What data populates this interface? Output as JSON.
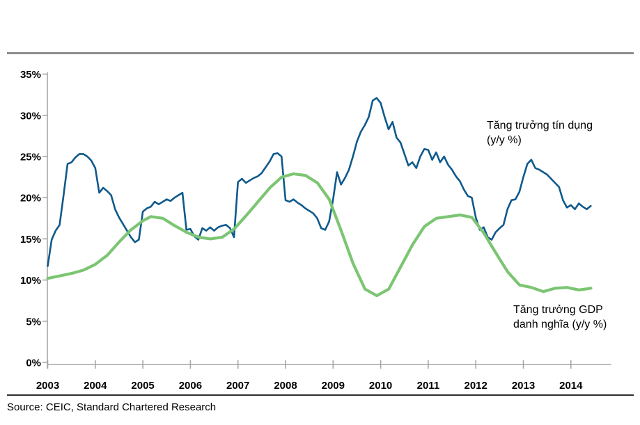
{
  "page": {
    "source_note": "Source: CEIC, Standard Chartered Research"
  },
  "colors": {
    "credit_line": "#0F598C",
    "gdp_line": "#7CC573",
    "axis": "#A6A6A6",
    "axis_label": "#000000",
    "top_rule": "#8C8C8C",
    "footer_rule": "#2E2E2E"
  },
  "chart_data": {
    "type": "line",
    "title": "",
    "grid": "off",
    "legend_position": "inline-annotations",
    "x_axis": {
      "tick_labels": [
        "2003",
        "2004",
        "2005",
        "2006",
        "2007",
        "2008",
        "2009",
        "2010",
        "2011",
        "2012",
        "2013",
        "2014"
      ],
      "tick_values": [
        2003,
        2004,
        2005,
        2006,
        2007,
        2008,
        2009,
        2010,
        2011,
        2012,
        2013,
        2014
      ],
      "range_start": 2003,
      "range_end": 2014.85
    },
    "y_axis": {
      "tick_labels": [
        "0%",
        "5%",
        "10%",
        "15%",
        "20%",
        "25%",
        "30%",
        "35%"
      ],
      "tick_values": [
        0,
        5,
        10,
        15,
        20,
        25,
        30,
        35
      ],
      "min": 0,
      "max": 35
    },
    "series": [
      {
        "name": "credit-growth",
        "label": "Tăng trưởng tín dụng\n(y/y %)",
        "color": "#0F598C",
        "stroke_width": 2.6,
        "frequency": "monthly",
        "start_year": 2003,
        "values": [
          11.7,
          14.9,
          16.0,
          16.7,
          20.3,
          24.1,
          24.3,
          24.9,
          25.3,
          25.3,
          25.0,
          24.5,
          23.6,
          20.6,
          21.2,
          20.8,
          20.3,
          18.6,
          17.6,
          16.8,
          16.0,
          15.2,
          14.6,
          14.9,
          18.3,
          18.7,
          18.9,
          19.5,
          19.2,
          19.5,
          19.8,
          19.6,
          20.0,
          20.3,
          20.6,
          16.1,
          16.2,
          15.3,
          14.9,
          16.3,
          16.0,
          16.4,
          16.0,
          16.4,
          16.6,
          16.7,
          16.3,
          15.2,
          21.9,
          22.3,
          21.8,
          22.1,
          22.4,
          22.6,
          23.0,
          23.7,
          24.4,
          25.3,
          25.4,
          25.0,
          19.7,
          19.5,
          19.8,
          19.4,
          19.1,
          18.7,
          18.4,
          18.1,
          17.5,
          16.3,
          16.1,
          17.1,
          19.8,
          23.1,
          21.6,
          22.4,
          23.4,
          25.0,
          26.8,
          28.0,
          28.8,
          29.8,
          31.8,
          32.1,
          31.5,
          29.8,
          28.3,
          29.2,
          27.3,
          26.7,
          25.3,
          23.9,
          24.3,
          23.6,
          25.0,
          25.9,
          25.8,
          24.6,
          25.5,
          24.3,
          25.0,
          24.0,
          23.4,
          22.6,
          22.0,
          21.0,
          20.2,
          20.0,
          17.6,
          16.1,
          16.4,
          15.2,
          14.9,
          15.8,
          16.3,
          16.7,
          18.6,
          19.7,
          19.8,
          20.7,
          22.5,
          24.1,
          24.6,
          23.6,
          23.4,
          23.1,
          22.8,
          22.3,
          21.8,
          21.3,
          19.7,
          18.8,
          19.1,
          18.6,
          19.3,
          18.9,
          18.6,
          19.0
        ]
      },
      {
        "name": "gdp-nominal-growth",
        "label": "Tăng trưởng GDP\ndanh nghĩa (y/y %)",
        "color": "#7CC573",
        "stroke_width": 4.2,
        "frequency": "quarterly",
        "points": [
          [
            2003.0,
            10.2
          ],
          [
            2003.25,
            10.5
          ],
          [
            2003.5,
            10.8
          ],
          [
            2003.75,
            11.2
          ],
          [
            2004.0,
            11.9
          ],
          [
            2004.25,
            13.0
          ],
          [
            2004.5,
            14.6
          ],
          [
            2004.75,
            16.1
          ],
          [
            2005.0,
            17.2
          ],
          [
            2005.17,
            17.7
          ],
          [
            2005.42,
            17.5
          ],
          [
            2005.67,
            16.6
          ],
          [
            2005.92,
            15.8
          ],
          [
            2006.17,
            15.2
          ],
          [
            2006.42,
            15.0
          ],
          [
            2006.67,
            15.2
          ],
          [
            2006.92,
            16.2
          ],
          [
            2007.17,
            17.8
          ],
          [
            2007.42,
            19.5
          ],
          [
            2007.67,
            21.2
          ],
          [
            2007.92,
            22.5
          ],
          [
            2008.17,
            22.9
          ],
          [
            2008.42,
            22.7
          ],
          [
            2008.67,
            21.8
          ],
          [
            2008.92,
            19.8
          ],
          [
            2009.17,
            16.0
          ],
          [
            2009.42,
            12.0
          ],
          [
            2009.67,
            8.9
          ],
          [
            2009.92,
            8.1
          ],
          [
            2010.17,
            8.9
          ],
          [
            2010.42,
            11.6
          ],
          [
            2010.67,
            14.3
          ],
          [
            2010.92,
            16.5
          ],
          [
            2011.17,
            17.5
          ],
          [
            2011.42,
            17.7
          ],
          [
            2011.67,
            17.9
          ],
          [
            2011.92,
            17.6
          ],
          [
            2012.17,
            15.7
          ],
          [
            2012.42,
            13.3
          ],
          [
            2012.67,
            11.0
          ],
          [
            2012.92,
            9.4
          ],
          [
            2013.17,
            9.1
          ],
          [
            2013.42,
            8.6
          ],
          [
            2013.67,
            9.0
          ],
          [
            2013.92,
            9.1
          ],
          [
            2014.17,
            8.8
          ],
          [
            2014.42,
            9.0
          ]
        ]
      }
    ]
  }
}
